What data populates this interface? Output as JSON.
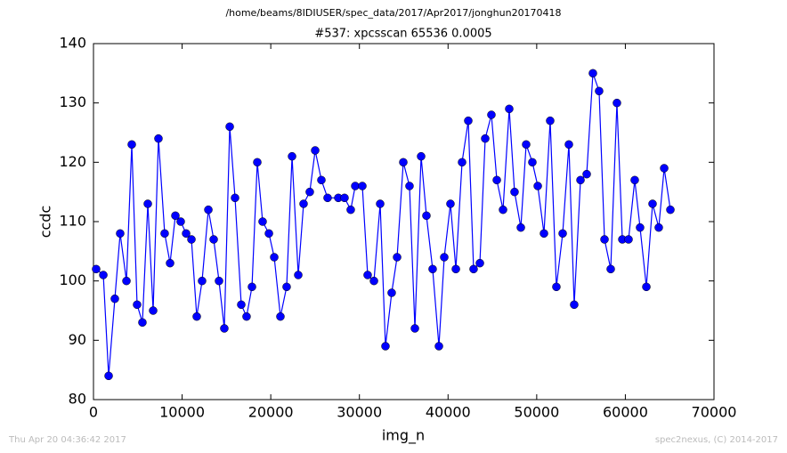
{
  "chart_data": {
    "type": "line",
    "suptitle": "/home/beams/8IDIUSER/spec_data/2017/Apr2017/jonghun20170418",
    "title": "#537: xpcsscan 65536 0.0005",
    "x_label": "img_n",
    "y_label": "ccdc",
    "footer_left": "Thu Apr 20 04:36:42 2017",
    "footer_right": "spec2nexus, (C) 2014-2017",
    "xlim": [
      0,
      70000
    ],
    "ylim": [
      80,
      140
    ],
    "xticks": [
      0,
      10000,
      20000,
      30000,
      40000,
      50000,
      60000,
      70000
    ],
    "yticks": [
      80,
      90,
      100,
      110,
      120,
      130,
      140
    ],
    "grid": false,
    "x": [
      300,
      1110,
      1710,
      2410,
      3010,
      3720,
      4320,
      4920,
      5520,
      6130,
      6730,
      7330,
      8030,
      8640,
      9240,
      9840,
      10450,
      11050,
      11650,
      12250,
      12960,
      13560,
      14160,
      14760,
      15370,
      15970,
      16670,
      17270,
      17880,
      18480,
      19080,
      19790,
      20390,
      21090,
      21790,
      22400,
      23100,
      23700,
      24400,
      25010,
      25710,
      26410,
      27620,
      28320,
      29020,
      29530,
      30330,
      30930,
      31640,
      32340,
      32940,
      33640,
      34250,
      34950,
      35650,
      36260,
      36960,
      37560,
      38260,
      38970,
      39570,
      40270,
      40880,
      41580,
      42280,
      42880,
      43590,
      44190,
      44890,
      45500,
      46200,
      46900,
      47500,
      48210,
      48810,
      49510,
      50120,
      50820,
      51520,
      52220,
      52930,
      53630,
      54230,
      54940,
      55640,
      56340,
      57040,
      57650,
      58350,
      59050,
      59660,
      60360,
      61060,
      61660,
      62370,
      63070,
      63770,
      64380,
      65080
    ],
    "series": [
      {
        "name": "ccdc",
        "color": "#0000ff",
        "values": [
          102,
          101,
          84,
          97,
          108,
          100,
          123,
          96,
          93,
          113,
          95,
          124,
          108,
          103,
          111,
          110,
          108,
          107,
          94,
          100,
          112,
          107,
          100,
          92,
          126,
          114,
          96,
          94,
          99,
          120,
          110,
          108,
          104,
          94,
          99,
          121,
          101,
          113,
          115,
          122,
          117,
          114,
          114,
          114,
          112,
          116,
          116,
          101,
          100,
          113,
          89,
          98,
          104,
          120,
          116,
          92,
          121,
          111,
          102,
          89,
          104,
          113,
          102,
          120,
          127,
          102,
          103,
          124,
          128,
          117,
          112,
          129,
          115,
          109,
          123,
          120,
          116,
          108,
          127,
          99,
          108,
          123,
          96,
          117,
          118,
          135,
          132,
          107,
          102,
          130,
          107,
          107,
          117,
          109,
          99,
          113,
          109,
          119,
          112
        ]
      }
    ]
  }
}
